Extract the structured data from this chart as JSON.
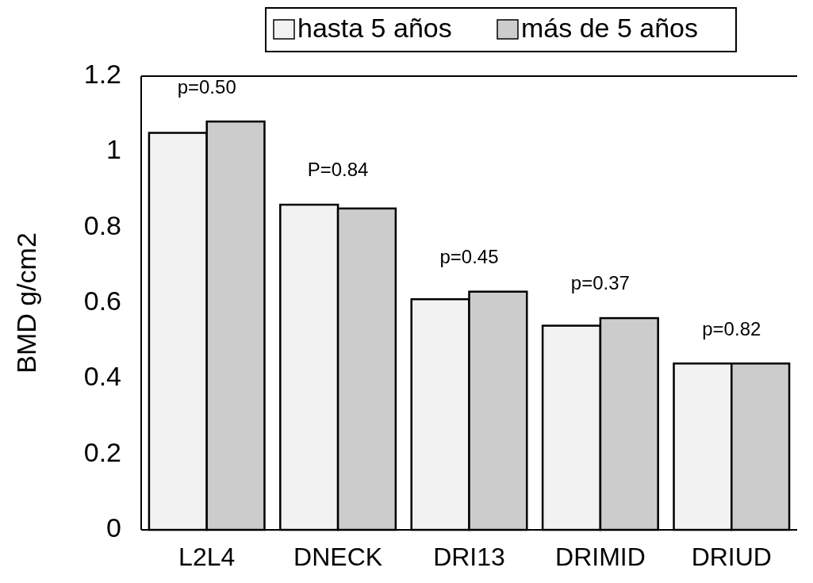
{
  "chart_data": {
    "type": "bar",
    "ylabel": "BMD g/cm2",
    "categories": [
      "L2L4",
      "DNECK",
      "DRI13",
      "DRIMID",
      "DRIUD"
    ],
    "series": [
      {
        "name": "hasta 5 años",
        "color": "#f2f2f2",
        "values": [
          1.05,
          0.86,
          0.61,
          0.54,
          0.44
        ]
      },
      {
        "name": "más de 5 años",
        "color": "#cccccc",
        "values": [
          1.08,
          0.85,
          0.63,
          0.56,
          0.44
        ]
      }
    ],
    "ylim": [
      0,
      1.2
    ],
    "yticks": [
      0,
      0.2,
      0.4,
      0.6,
      0.8,
      1,
      1.2
    ],
    "grid": false,
    "legend": "top",
    "annotations": [
      "p=0.50",
      "P=0.84",
      "p=0.45",
      "p=0.37",
      "p=0.82"
    ]
  }
}
